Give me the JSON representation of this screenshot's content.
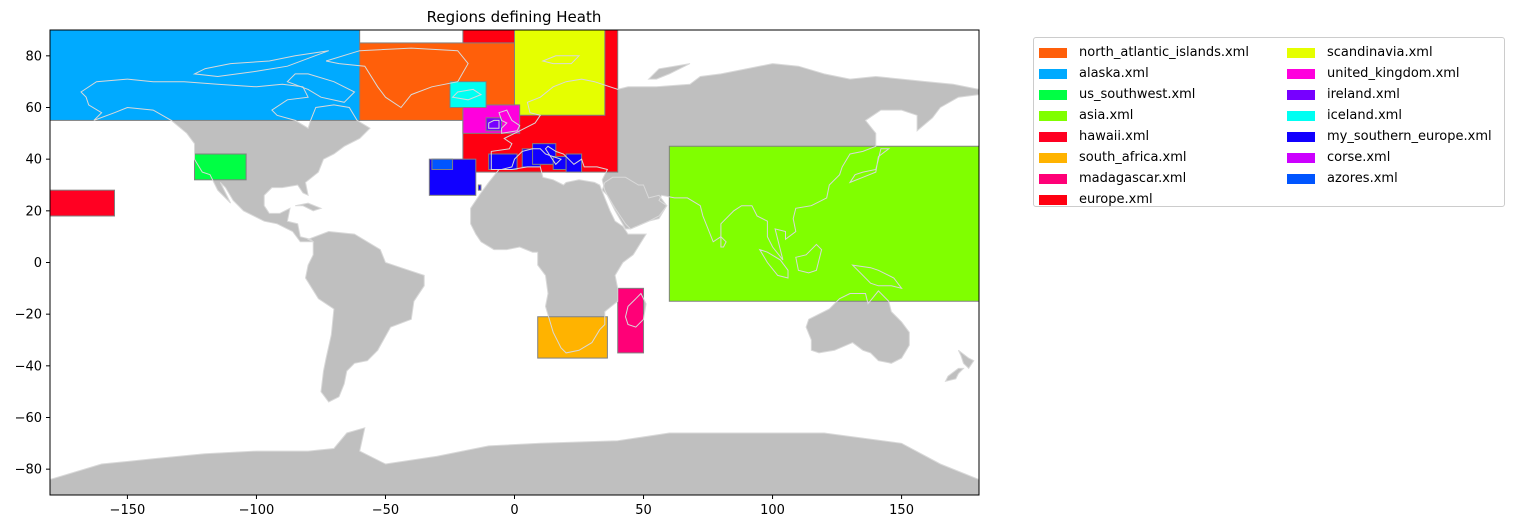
{
  "title": "Regions defining Heath",
  "map": {
    "projection": "plate carree",
    "land_color": "#bfbfbf",
    "coastline_color": "#d9d9d9",
    "box_edge_color": "#808080",
    "x_range": [
      -180,
      180
    ],
    "y_range": [
      -90,
      90
    ],
    "x_ticks": [
      -150,
      -100,
      -50,
      0,
      50,
      100,
      150
    ],
    "y_ticks": [
      80,
      60,
      40,
      20,
      0,
      -20,
      -40,
      -60,
      -80
    ]
  },
  "regions": [
    {
      "name": "north_atlantic_islands.xml",
      "color": "#ff5f0a",
      "lon": [
        -60,
        0
      ],
      "lat": [
        55,
        85
      ]
    },
    {
      "name": "alaska.xml",
      "color": "#00aaff",
      "lon": [
        -180,
        -60
      ],
      "lat": [
        55,
        90
      ]
    },
    {
      "name": "us_southwest.xml",
      "color": "#00ff44",
      "lon": [
        -124,
        -104
      ],
      "lat": [
        32,
        42
      ]
    },
    {
      "name": "asia.xml",
      "color": "#80ff00",
      "lon": [
        60,
        180
      ],
      "lat": [
        -15,
        45
      ]
    },
    {
      "name": "hawaii.xml",
      "color": "#ff0022",
      "lon": [
        -180,
        -155
      ],
      "lat": [
        18,
        28
      ]
    },
    {
      "name": "south_africa.xml",
      "color": "#ffb300",
      "lon": [
        9,
        36
      ],
      "lat": [
        -37,
        -21
      ]
    },
    {
      "name": "madagascar.xml",
      "color": "#ff0077",
      "lon": [
        40,
        50
      ],
      "lat": [
        -35,
        -10
      ]
    },
    {
      "name": "europe.xml",
      "color": "#ff0011",
      "lon": [
        -20,
        40
      ],
      "lat": [
        35,
        90
      ]
    },
    {
      "name": "scandinavia.xml",
      "color": "#e5ff00",
      "lon": [
        0,
        35
      ],
      "lat": [
        57,
        90
      ]
    },
    {
      "name": "united_kingdom.xml",
      "color": "#ff00dd",
      "lon": [
        -20,
        2
      ],
      "lat": [
        50,
        61
      ]
    },
    {
      "name": "ireland.xml",
      "color": "#7700ff",
      "lon": [
        -11,
        -5
      ],
      "lat": [
        51,
        56
      ]
    },
    {
      "name": "iceland.xml",
      "color": "#00fff2",
      "lon": [
        -25,
        -11
      ],
      "lat": [
        60,
        70
      ]
    },
    {
      "name": "my_southern_europe.xml",
      "color": "#1100ff",
      "lon": [
        -33,
        -15
      ],
      "lat": [
        26,
        40
      ]
    },
    {
      "name": "corse.xml",
      "color": "#cc00ff",
      "lon": [
        8,
        10
      ],
      "lat": [
        41,
        43
      ]
    },
    {
      "name": "azores.xml",
      "color": "#0055ff",
      "lon": [
        -32,
        -24
      ],
      "lat": [
        36,
        40
      ]
    }
  ],
  "southern_europe_boxes": [
    {
      "lon": [
        -10,
        1
      ],
      "lat": [
        36,
        42
      ]
    },
    {
      "lon": [
        3,
        10
      ],
      "lat": [
        37,
        44
      ]
    },
    {
      "lon": [
        7,
        16
      ],
      "lat": [
        38,
        46
      ]
    },
    {
      "lon": [
        15,
        20
      ],
      "lat": [
        36,
        41
      ]
    },
    {
      "lon": [
        20,
        26
      ],
      "lat": [
        35,
        42
      ]
    },
    {
      "lon": [
        -14,
        -13
      ],
      "lat": [
        28,
        30
      ]
    }
  ],
  "legend": {
    "columns": [
      [
        "north_atlantic_islands.xml",
        "alaska.xml",
        "us_southwest.xml",
        "asia.xml",
        "hawaii.xml",
        "south_africa.xml",
        "madagascar.xml",
        "europe.xml"
      ],
      [
        "scandinavia.xml",
        "united_kingdom.xml",
        "ireland.xml",
        "iceland.xml",
        "my_southern_europe.xml",
        "corse.xml",
        "azores.xml"
      ]
    ]
  }
}
